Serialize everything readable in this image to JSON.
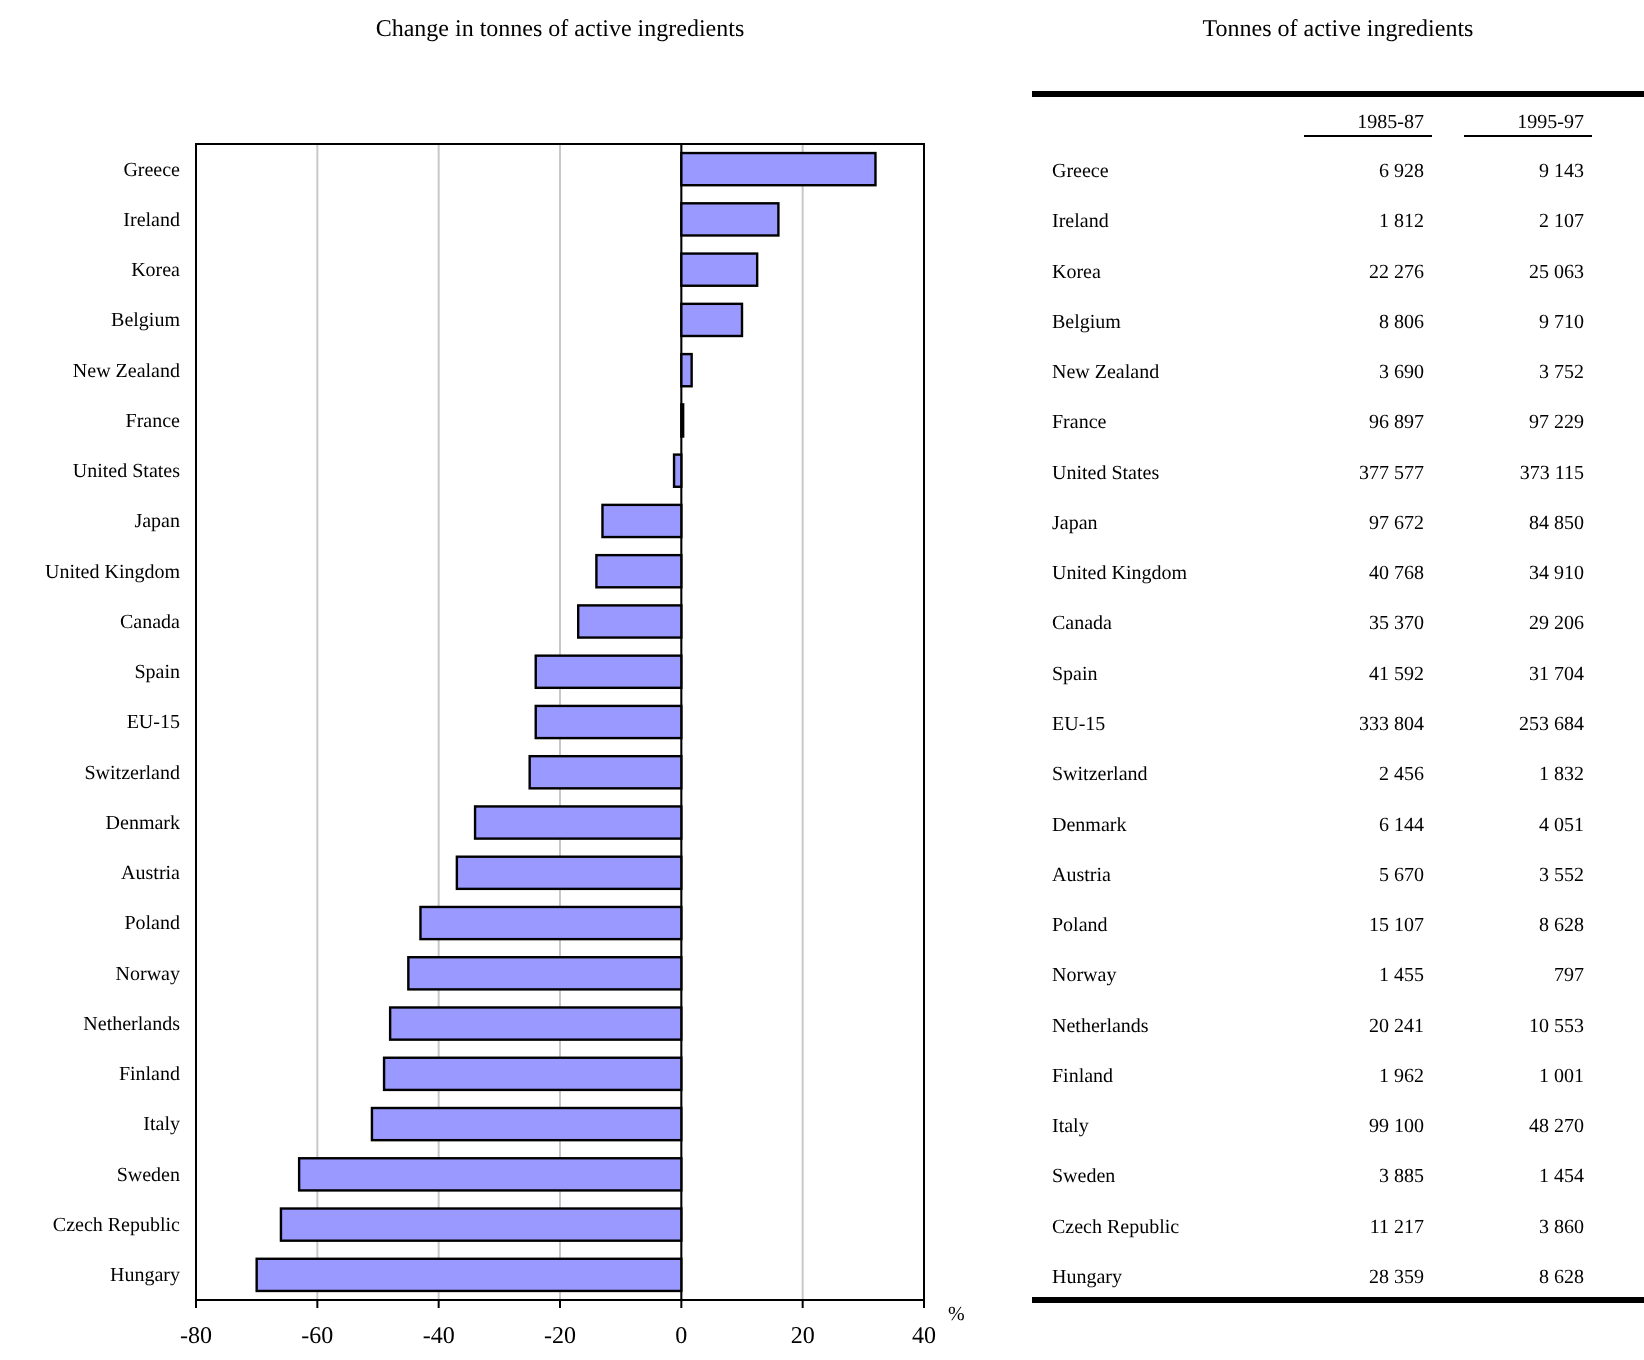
{
  "chart_data": [
    {
      "type": "bar",
      "orientation": "horizontal",
      "title": "Change in tonnes of active ingredients",
      "xlabel": "%",
      "categories": [
        "Greece",
        "Ireland",
        "Korea",
        "Belgium",
        "New Zealand",
        "France",
        "United States",
        "Japan",
        "United Kingdom",
        "Canada",
        "Spain",
        "EU-15",
        "Switzerland",
        "Denmark",
        "Austria",
        "Poland",
        "Norway",
        "Netherlands",
        "Finland",
        "Italy",
        "Sweden",
        "Czech Republic",
        "Hungary"
      ],
      "values": [
        32,
        16,
        12.5,
        10,
        1.7,
        0.3,
        -1.2,
        -13,
        -14,
        -17,
        -24,
        -24,
        -25,
        -34,
        -37,
        -43,
        -45,
        -48,
        -49,
        -51,
        -63,
        -66,
        -70
      ],
      "color": "#9999ff",
      "xlim": [
        -80,
        40
      ],
      "xticks": [
        -80,
        -60,
        -40,
        -20,
        0,
        20,
        40
      ],
      "grid": "x"
    },
    {
      "type": "other",
      "title": "Tonnes of active ingredients",
      "data_labels": true,
      "categories": [
        "Greece",
        "Ireland",
        "Korea",
        "Belgium",
        "New Zealand",
        "France",
        "United States",
        "Japan",
        "United Kingdom",
        "Canada",
        "Spain",
        "EU-15",
        "Switzerland",
        "Denmark",
        "Austria",
        "Poland",
        "Norway",
        "Netherlands",
        "Finland",
        "Italy",
        "Sweden",
        "Czech Republic",
        "Hungary"
      ],
      "series": [
        {
          "name": "1985-87",
          "values": [
            6928,
            1812,
            22276,
            8806,
            3690,
            96897,
            377577,
            97672,
            40768,
            35370,
            41592,
            333804,
            2456,
            6144,
            5670,
            15107,
            1455,
            20241,
            1962,
            99100,
            3885,
            11217,
            28359
          ]
        },
        {
          "name": "1995-97",
          "values": [
            9143,
            2107,
            25063,
            9710,
            3752,
            97229,
            373115,
            84850,
            34910,
            29206,
            31704,
            253684,
            1832,
            4051,
            3552,
            8628,
            797,
            10553,
            1001,
            48270,
            1454,
            3860,
            8628
          ]
        }
      ]
    }
  ]
}
